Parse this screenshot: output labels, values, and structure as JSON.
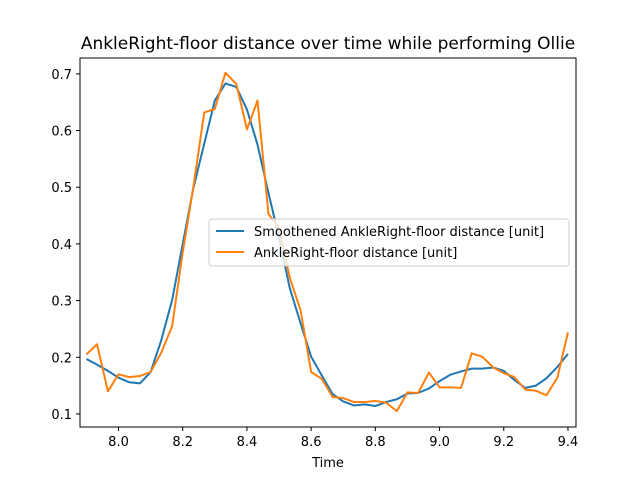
{
  "chart_data": {
    "type": "line",
    "title": "AnkleRight-floor distance over time while performing Ollie",
    "xlabel": "Time",
    "ylabel": "",
    "xlim": [
      7.88,
      9.425
    ],
    "ylim": [
      0.077,
      0.728
    ],
    "xticks": [
      8.0,
      8.2,
      8.4,
      8.6,
      8.8,
      9.0,
      9.2,
      9.4
    ],
    "xtick_labels": [
      "8.0",
      "8.2",
      "8.4",
      "8.6",
      "8.8",
      "9.0",
      "9.2",
      "9.4"
    ],
    "yticks": [
      0.1,
      0.2,
      0.3,
      0.4,
      0.5,
      0.6,
      0.7
    ],
    "ytick_labels": [
      "0.1",
      "0.2",
      "0.3",
      "0.4",
      "0.5",
      "0.6",
      "0.7"
    ],
    "grid": false,
    "legend_position": "center-right",
    "series": [
      {
        "name": "Smoothened AnkleRight-floor distance [unit]",
        "color": "#1f77b4",
        "x": [
          7.9,
          7.933,
          7.967,
          8.0,
          8.033,
          8.067,
          8.1,
          8.133,
          8.167,
          8.2,
          8.233,
          8.267,
          8.3,
          8.333,
          8.367,
          8.4,
          8.433,
          8.467,
          8.5,
          8.533,
          8.567,
          8.6,
          8.633,
          8.667,
          8.7,
          8.733,
          8.767,
          8.8,
          8.833,
          8.867,
          8.9,
          8.933,
          8.967,
          9.0,
          9.033,
          9.067,
          9.1,
          9.133,
          9.167,
          9.2,
          9.233,
          9.267,
          9.3,
          9.333,
          9.367,
          9.4
        ],
        "values": [
          0.197,
          0.187,
          0.176,
          0.164,
          0.156,
          0.154,
          0.174,
          0.23,
          0.301,
          0.4,
          0.498,
          0.577,
          0.653,
          0.683,
          0.677,
          0.637,
          0.575,
          0.49,
          0.411,
          0.323,
          0.26,
          0.201,
          0.168,
          0.135,
          0.122,
          0.115,
          0.117,
          0.114,
          0.121,
          0.126,
          0.136,
          0.137,
          0.145,
          0.158,
          0.169,
          0.175,
          0.18,
          0.18,
          0.182,
          0.176,
          0.16,
          0.146,
          0.15,
          0.163,
          0.183,
          0.206
        ]
      },
      {
        "name": "AnkleRight-floor distance [unit]",
        "color": "#ff7f0e",
        "x": [
          7.9,
          7.933,
          7.967,
          8.0,
          8.033,
          8.067,
          8.1,
          8.133,
          8.167,
          8.2,
          8.233,
          8.267,
          8.3,
          8.333,
          8.367,
          8.4,
          8.433,
          8.467,
          8.5,
          8.533,
          8.567,
          8.6,
          8.633,
          8.667,
          8.7,
          8.733,
          8.767,
          8.8,
          8.833,
          8.867,
          8.9,
          8.933,
          8.967,
          9.0,
          9.033,
          9.067,
          9.1,
          9.133,
          9.167,
          9.2,
          9.233,
          9.267,
          9.3,
          9.333,
          9.367,
          9.4
        ],
        "values": [
          0.205,
          0.223,
          0.14,
          0.17,
          0.165,
          0.167,
          0.174,
          0.208,
          0.255,
          0.385,
          0.5,
          0.632,
          0.638,
          0.702,
          0.682,
          0.602,
          0.653,
          0.453,
          0.428,
          0.341,
          0.283,
          0.174,
          0.162,
          0.13,
          0.128,
          0.121,
          0.121,
          0.123,
          0.12,
          0.105,
          0.138,
          0.137,
          0.173,
          0.147,
          0.147,
          0.146,
          0.207,
          0.201,
          0.182,
          0.172,
          0.165,
          0.143,
          0.141,
          0.133,
          0.164,
          0.244
        ]
      }
    ]
  }
}
